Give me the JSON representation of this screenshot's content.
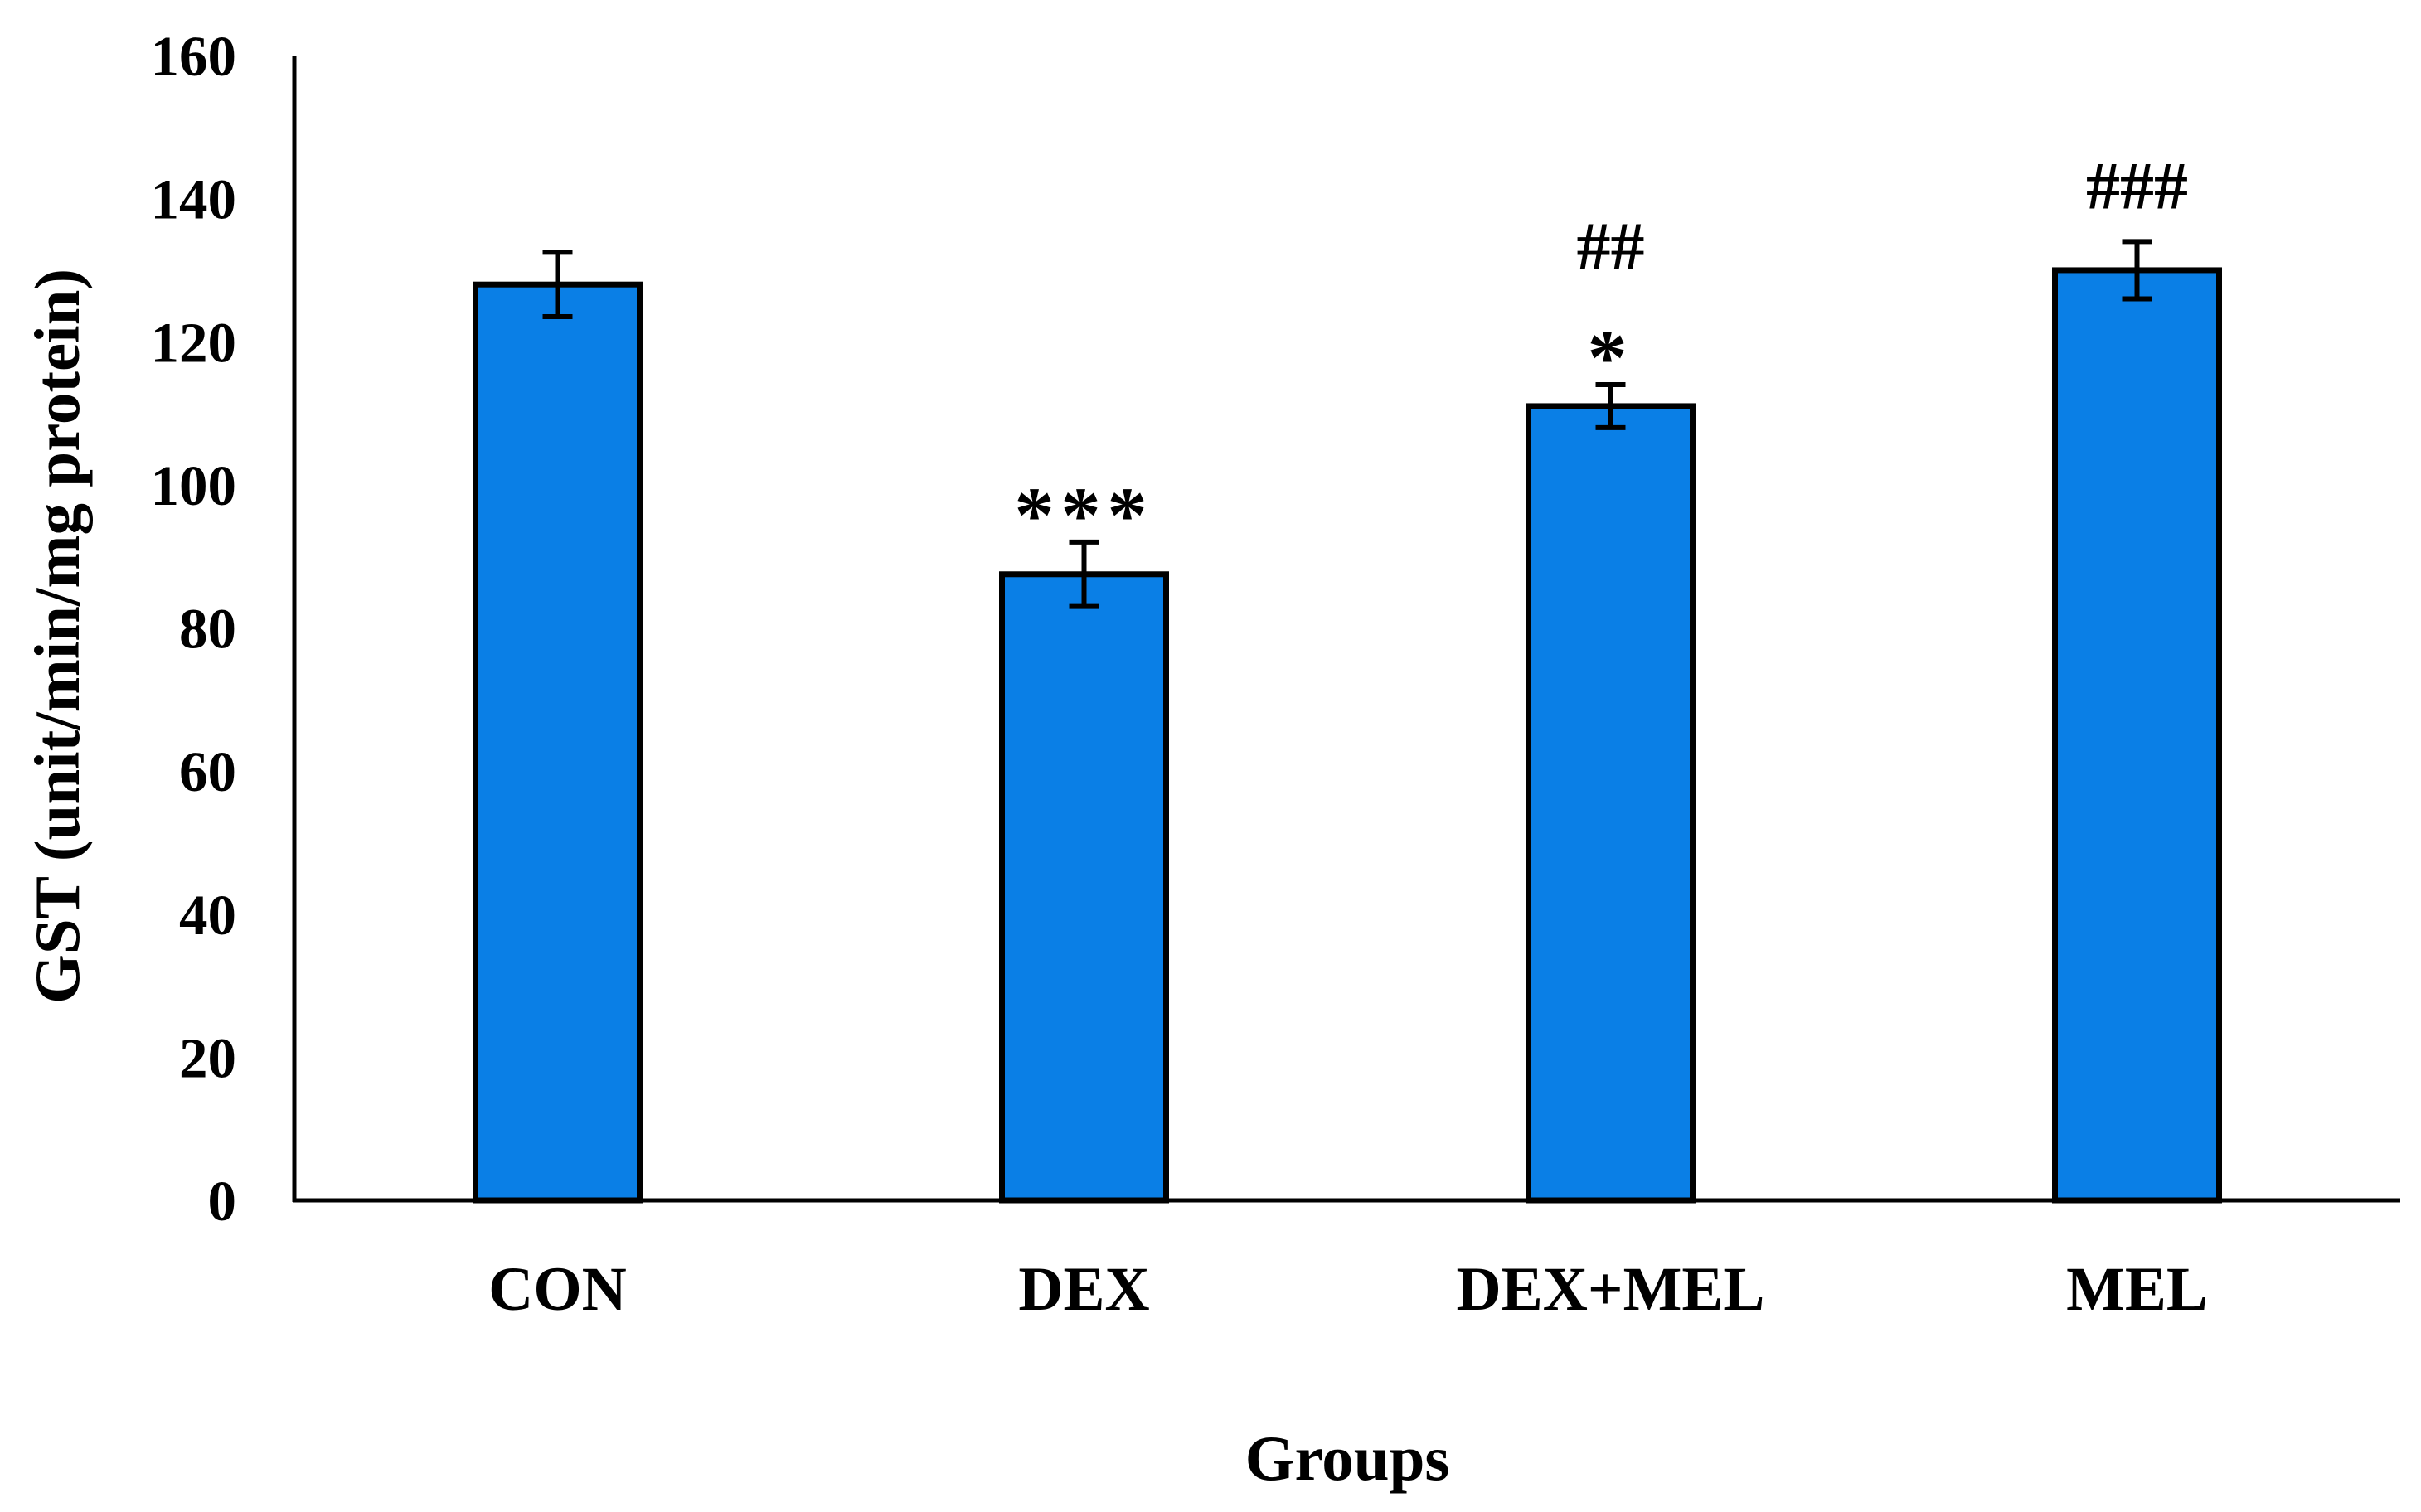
{
  "chart_data": {
    "type": "bar",
    "categories": [
      "CON",
      "DEX",
      "DEX+MEL",
      "MEL"
    ],
    "values": [
      128,
      87.5,
      111,
      130
    ],
    "error": [
      4.5,
      4.5,
      3,
      4
    ],
    "annotations": [
      [],
      [
        "***"
      ],
      [
        "*",
        "##"
      ],
      [
        "###"
      ]
    ],
    "xlabel": "Groups",
    "ylabel": "GST (unit/min/mg protein)",
    "ylim": [
      0,
      160
    ],
    "yticks": [
      "0",
      "20",
      "40",
      "60",
      "80",
      "100",
      "120",
      "140",
      "160"
    ],
    "grid": false,
    "legend": "none",
    "colors": {
      "bar_fill": "#0A7FE6",
      "bar_stroke": "#000000",
      "axis": "#000000",
      "text": "#000000"
    }
  }
}
